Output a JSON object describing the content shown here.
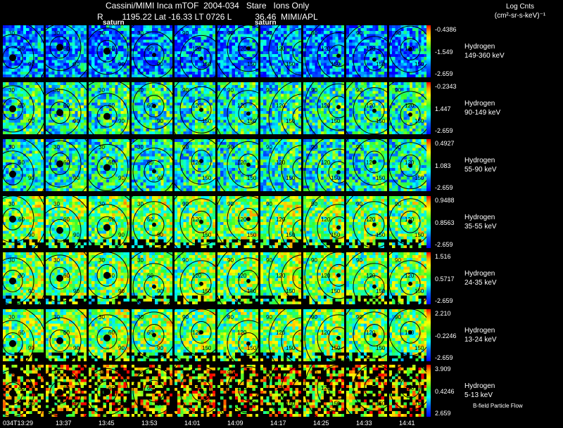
{
  "header": {
    "title": "Cassini/MIMI Inca mTOF  2004-034   Stare   Ions Only",
    "subtitle": "R        1195.22 Lat -16.33 LT 0726 L          36.46  MIMI/APL",
    "units_line1": "Log Cnts",
    "units_line2": "(cm²-sr-s-keV)⁻¹"
  },
  "annotations": {
    "a1": "saturn",
    "a2": "saturn"
  },
  "rows": [
    {
      "species": "Hydrogen",
      "energy": "149-360 keV",
      "scale_max": "-0.4386",
      "scale_mid": "-1.549",
      "scale_min": "-2.659",
      "palette": "blue"
    },
    {
      "species": "Hydrogen",
      "energy": "90-149 keV",
      "scale_max": "-0.2343",
      "scale_mid": "1.447",
      "scale_min": "-2.659",
      "palette": "cyan"
    },
    {
      "species": "Hydrogen",
      "energy": "55-90 keV",
      "scale_max": "0.4927",
      "scale_mid": "1.083",
      "scale_min": "-2.659",
      "palette": "cyan"
    },
    {
      "species": "Hydrogen",
      "energy": "35-55 keV",
      "scale_max": "0.9488",
      "scale_mid": "0.8563",
      "scale_min": "-2.659",
      "palette": "green"
    },
    {
      "species": "Hydrogen",
      "energy": "24-35 keV",
      "scale_max": "1.516",
      "scale_mid": "0.5717",
      "scale_min": "-2.659",
      "palette": "green"
    },
    {
      "species": "Hydrogen",
      "energy": "13-24 keV",
      "scale_max": "2.210",
      "scale_mid": "-0.2246",
      "scale_min": "-2.659",
      "palette": "green"
    },
    {
      "species": "Hydrogen",
      "energy": "5-13 keV",
      "scale_max": "3.909",
      "scale_mid": "0.4246",
      "scale_min": "2.659",
      "palette": "sparse"
    }
  ],
  "time_labels": [
    "034T13:29",
    "13:37",
    "13:45",
    "13:53",
    "14:01",
    "14:09",
    "14:17",
    "14:25",
    "14:33",
    "14:41"
  ],
  "contour_labels": [
    "30",
    "60",
    "90",
    "120",
    "150"
  ],
  "footer": {
    "bfield_label": "B-field Particle Flow"
  },
  "colors": {
    "background": "#000000",
    "text": "#ffffff",
    "contour": "#000000"
  }
}
